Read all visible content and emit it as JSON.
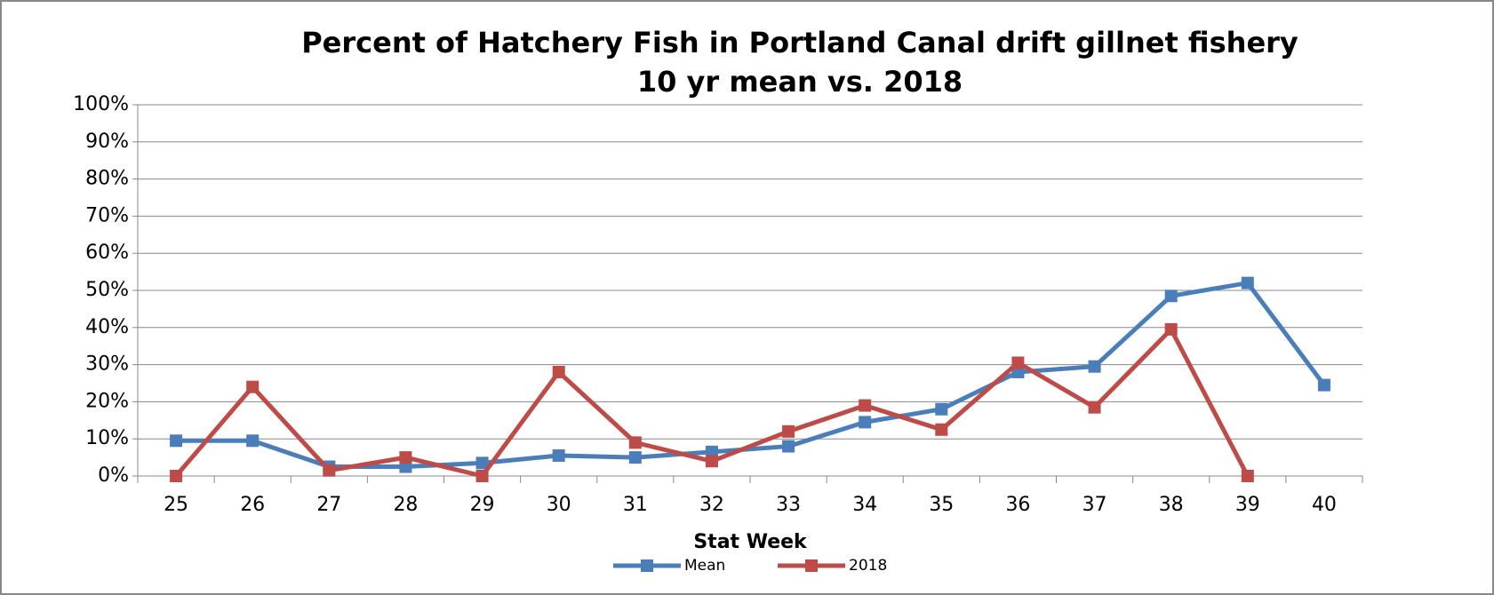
{
  "chart_data": {
    "type": "line",
    "title": [
      "Percent of Hatchery Fish in Portland Canal drift gillnet fishery",
      "10 yr mean vs. 2018"
    ],
    "x_label": "Stat Week",
    "categories": [
      "25",
      "26",
      "27",
      "28",
      "29",
      "30",
      "31",
      "32",
      "33",
      "34",
      "35",
      "36",
      "37",
      "38",
      "39",
      "40"
    ],
    "series": [
      {
        "name": "Mean",
        "color": "#4a7ebb",
        "values": [
          9.5,
          9.5,
          2.5,
          2.5,
          3.5,
          5.5,
          5,
          6.5,
          8,
          14.5,
          18,
          28,
          29.5,
          48.5,
          52,
          24.5
        ]
      },
      {
        "name": "2018",
        "color": "#be4b48",
        "values": [
          0,
          24,
          1.5,
          5,
          0,
          28,
          9,
          4,
          12,
          19,
          12.5,
          30.5,
          18.5,
          39.5,
          0,
          null
        ]
      }
    ],
    "ylim": [
      0,
      100
    ],
    "yticks": [
      {
        "value": 0,
        "label": "0%"
      },
      {
        "value": 10,
        "label": "10%"
      },
      {
        "value": 20,
        "label": "20%"
      },
      {
        "value": 30,
        "label": "30%"
      },
      {
        "value": 40,
        "label": "40%"
      },
      {
        "value": 50,
        "label": "50%"
      },
      {
        "value": 60,
        "label": "60%"
      },
      {
        "value": 70,
        "label": "70%"
      },
      {
        "value": 80,
        "label": "80%"
      },
      {
        "value": 90,
        "label": "90%"
      },
      {
        "value": 100,
        "label": "100%"
      }
    ],
    "grid": true,
    "legend": "bottom"
  }
}
